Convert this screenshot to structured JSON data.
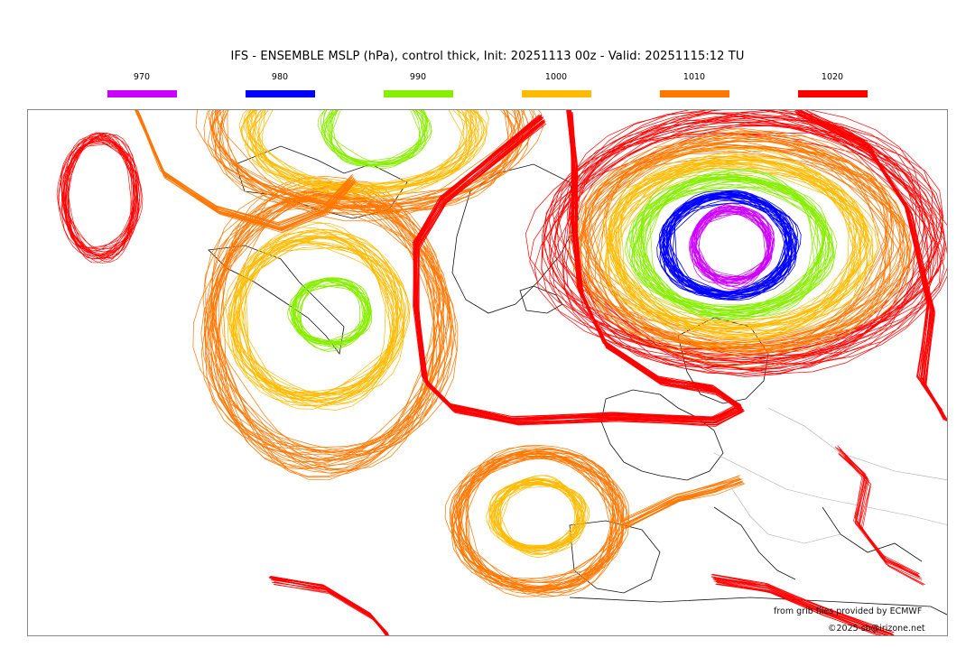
{
  "title": "IFS - ENSEMBLE MSLP (hPa), control thick, Init: 20251113 00z - Valid: 20251115:12 TU",
  "legend": [
    {
      "label": "970",
      "color": "#cc00ff"
    },
    {
      "label": "980",
      "color": "#0000ff"
    },
    {
      "label": "990",
      "color": "#88ee00"
    },
    {
      "label": "1000",
      "color": "#ffbb00"
    },
    {
      "label": "1010",
      "color": "#ff7700"
    },
    {
      "label": "1020",
      "color": "#ff0000"
    }
  ],
  "credits": {
    "source": "from grib files provided by ECMWF",
    "copyright": "©2025 sb@irizone.net"
  }
}
